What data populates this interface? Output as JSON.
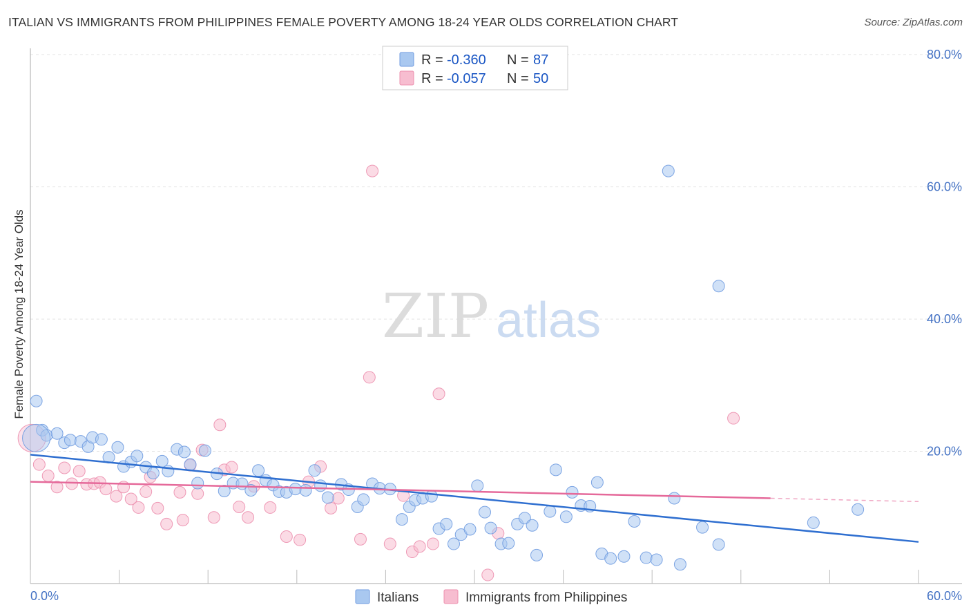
{
  "title": "ITALIAN VS IMMIGRANTS FROM PHILIPPINES FEMALE POVERTY AMONG 18-24 YEAR OLDS CORRELATION CHART",
  "source": "Source: ZipAtlas.com",
  "watermark": {
    "zip": "ZIP",
    "atlas": "atlas"
  },
  "legend": {
    "rows": [
      {
        "r_label": "R =",
        "r_value": "-0.360",
        "n_label": "N =",
        "n_value": "87",
        "color": "#a9c8f0",
        "stroke": "#6f9be0"
      },
      {
        "r_label": "R =",
        "r_value": "-0.057",
        "n_label": "N =",
        "n_value": "50",
        "color": "#f7bdd0",
        "stroke": "#ec8fae"
      }
    ]
  },
  "bottom_legend": [
    {
      "label": "Italians",
      "color": "#a9c8f0",
      "stroke": "#6f9be0"
    },
    {
      "label": "Immigrants from Philippines",
      "color": "#f7bdd0",
      "stroke": "#ec8fae"
    }
  ],
  "chart_data": {
    "type": "scatter",
    "title": "ITALIAN VS IMMIGRANTS FROM PHILIPPINES FEMALE POVERTY AMONG 18-24 YEAR OLDS CORRELATION CHART",
    "xlabel": "",
    "ylabel": "Female Poverty Among 18-24 Year Olds",
    "xlim": [
      0,
      60
    ],
    "ylim": [
      0,
      82
    ],
    "x_tick_labels": [
      "0.0%",
      "60.0%"
    ],
    "y_ticks": [
      20,
      40,
      60,
      80
    ],
    "y_tick_labels": [
      "20.0%",
      "40.0%",
      "60.0%",
      "80.0%"
    ],
    "grid": true,
    "legend_position": "top-center",
    "series": [
      {
        "name": "Italians",
        "color": "#6f9be0",
        "fill": "#a9c8f0",
        "trend": {
          "x": [
            0,
            60
          ],
          "y": [
            19.5,
            6.3
          ],
          "color": "#2f6fd0"
        },
        "points": [
          [
            0.4,
            27.6
          ],
          [
            0.8,
            23.2
          ],
          [
            1.1,
            22.4
          ],
          [
            1.8,
            22.7
          ],
          [
            2.3,
            21.3
          ],
          [
            2.7,
            21.7
          ],
          [
            3.4,
            21.5
          ],
          [
            3.9,
            20.7
          ],
          [
            4.2,
            22.1
          ],
          [
            4.8,
            21.8
          ],
          [
            5.3,
            19.1
          ],
          [
            5.9,
            20.6
          ],
          [
            6.3,
            17.7
          ],
          [
            6.8,
            18.4
          ],
          [
            7.2,
            19.3
          ],
          [
            7.8,
            17.6
          ],
          [
            8.3,
            16.7
          ],
          [
            8.9,
            18.5
          ],
          [
            9.3,
            17.0
          ],
          [
            9.9,
            20.3
          ],
          [
            10.4,
            19.9
          ],
          [
            10.8,
            18.0
          ],
          [
            11.3,
            15.2
          ],
          [
            11.8,
            20.1
          ],
          [
            12.6,
            16.6
          ],
          [
            13.1,
            14.0
          ],
          [
            13.7,
            15.2
          ],
          [
            14.3,
            15.1
          ],
          [
            14.9,
            14.1
          ],
          [
            15.4,
            17.1
          ],
          [
            15.9,
            15.6
          ],
          [
            16.4,
            14.9
          ],
          [
            16.8,
            13.9
          ],
          [
            17.3,
            13.8
          ],
          [
            17.9,
            14.3
          ],
          [
            18.6,
            14.1
          ],
          [
            19.2,
            17.1
          ],
          [
            19.6,
            14.8
          ],
          [
            20.1,
            13.0
          ],
          [
            21.0,
            15.0
          ],
          [
            21.5,
            14.2
          ],
          [
            22.1,
            11.6
          ],
          [
            22.5,
            12.7
          ],
          [
            23.1,
            15.1
          ],
          [
            23.6,
            14.4
          ],
          [
            24.3,
            14.3
          ],
          [
            25.1,
            9.7
          ],
          [
            25.6,
            11.6
          ],
          [
            26.0,
            12.6
          ],
          [
            26.5,
            12.9
          ],
          [
            27.1,
            13.2
          ],
          [
            27.6,
            8.3
          ],
          [
            28.1,
            9.0
          ],
          [
            28.6,
            6.0
          ],
          [
            29.1,
            7.4
          ],
          [
            29.7,
            8.2
          ],
          [
            30.2,
            14.8
          ],
          [
            30.7,
            10.8
          ],
          [
            31.1,
            8.4
          ],
          [
            31.8,
            6.0
          ],
          [
            32.3,
            6.1
          ],
          [
            32.9,
            9.0
          ],
          [
            33.4,
            9.9
          ],
          [
            33.9,
            8.8
          ],
          [
            34.2,
            4.3
          ],
          [
            35.1,
            10.9
          ],
          [
            35.5,
            17.2
          ],
          [
            36.2,
            10.1
          ],
          [
            36.6,
            13.8
          ],
          [
            37.2,
            11.8
          ],
          [
            37.8,
            11.7
          ],
          [
            38.3,
            15.3
          ],
          [
            38.6,
            4.5
          ],
          [
            39.2,
            3.8
          ],
          [
            40.1,
            4.1
          ],
          [
            40.8,
            9.4
          ],
          [
            41.6,
            3.9
          ],
          [
            42.3,
            3.6
          ],
          [
            43.1,
            62.4
          ],
          [
            43.5,
            12.9
          ],
          [
            43.9,
            2.9
          ],
          [
            45.4,
            8.5
          ],
          [
            46.5,
            45.0
          ],
          [
            46.5,
            5.9
          ],
          [
            52.9,
            9.2
          ],
          [
            55.9,
            11.2
          ],
          [
            0.4,
            22.0
          ]
        ]
      },
      {
        "name": "Immigrants from Philippines",
        "color": "#ec8fae",
        "fill": "#f7bdd0",
        "trend": {
          "x": [
            0,
            50
          ],
          "y": [
            15.4,
            12.9
          ],
          "dashed_to": [
            60,
            12.4
          ],
          "color": "#e5699a"
        },
        "points": [
          [
            0.1,
            22.0
          ],
          [
            0.6,
            18.0
          ],
          [
            1.2,
            16.3
          ],
          [
            1.8,
            14.6
          ],
          [
            2.3,
            17.5
          ],
          [
            2.8,
            15.1
          ],
          [
            3.3,
            17.0
          ],
          [
            3.8,
            15.0
          ],
          [
            4.3,
            15.1
          ],
          [
            4.7,
            15.3
          ],
          [
            5.1,
            14.3
          ],
          [
            5.8,
            13.2
          ],
          [
            6.3,
            14.6
          ],
          [
            6.8,
            12.8
          ],
          [
            7.3,
            11.5
          ],
          [
            7.8,
            13.9
          ],
          [
            8.1,
            16.1
          ],
          [
            8.6,
            11.4
          ],
          [
            9.2,
            9.0
          ],
          [
            10.1,
            13.8
          ],
          [
            10.3,
            9.6
          ],
          [
            10.8,
            17.9
          ],
          [
            11.3,
            13.6
          ],
          [
            11.6,
            20.2
          ],
          [
            12.4,
            10.0
          ],
          [
            12.8,
            24.0
          ],
          [
            13.1,
            17.2
          ],
          [
            13.6,
            17.6
          ],
          [
            14.1,
            11.6
          ],
          [
            14.7,
            10.0
          ],
          [
            15.1,
            14.7
          ],
          [
            16.2,
            11.5
          ],
          [
            17.3,
            7.1
          ],
          [
            18.2,
            6.6
          ],
          [
            18.8,
            15.4
          ],
          [
            19.6,
            17.7
          ],
          [
            20.3,
            11.4
          ],
          [
            20.8,
            12.9
          ],
          [
            22.3,
            6.7
          ],
          [
            22.9,
            31.2
          ],
          [
            23.1,
            62.4
          ],
          [
            24.3,
            6.0
          ],
          [
            25.2,
            13.3
          ],
          [
            25.8,
            4.8
          ],
          [
            26.3,
            5.6
          ],
          [
            27.2,
            6.0
          ],
          [
            27.6,
            28.7
          ],
          [
            30.9,
            1.3
          ],
          [
            31.6,
            7.6
          ],
          [
            47.5,
            25.0
          ]
        ]
      }
    ]
  }
}
